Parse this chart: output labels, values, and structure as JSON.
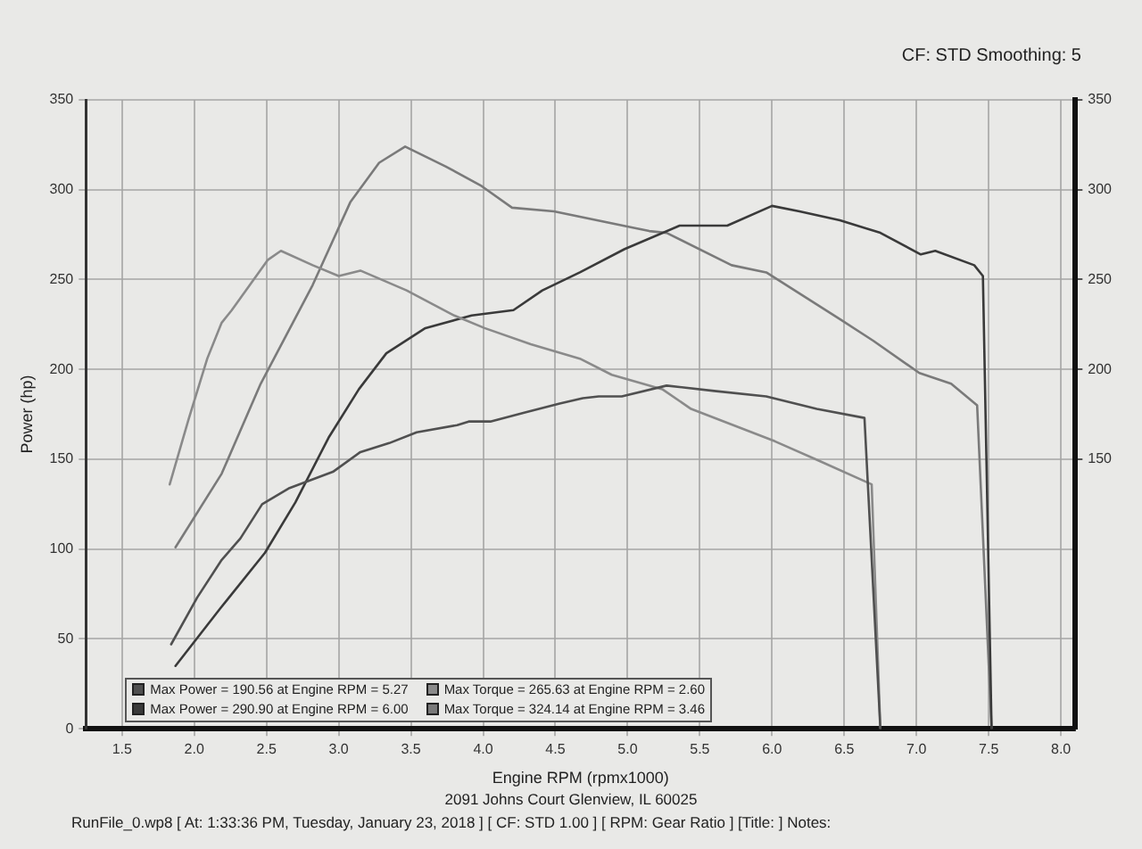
{
  "chart_data": {
    "type": "line",
    "xlabel": "Engine RPM (rpmx1000)",
    "ylabel": "Power (hp)",
    "annotations": [
      "CF: STD Smoothing: 5",
      "2091 Johns Court Glenview, IL 60025",
      "RunFile_0.wp8 [ At: 1:33:36 PM, Tuesday, January 23, 2018 ] [ CF: STD 1.00 ] [ RPM: Gear Ratio ] [Title: ] Notes:"
    ],
    "xlim": [
      1.25,
      8.1
    ],
    "xticks": [
      1.5,
      {
        "value": 2,
        "label": "2.0"
      },
      2.5,
      {
        "value": 3,
        "label": "3.0"
      },
      3.5,
      {
        "value": 4,
        "label": "4.0"
      },
      4.5,
      {
        "value": 5,
        "label": "5.0"
      },
      5.5,
      {
        "value": 6,
        "label": "6.0"
      },
      6.5,
      {
        "value": 7,
        "label": "7.0"
      },
      7.5,
      {
        "value": 8,
        "label": "8.0"
      }
    ],
    "ylim": [
      0,
      350
    ],
    "yticks": [
      0,
      50,
      100,
      150,
      200,
      250,
      300,
      350
    ],
    "y2lim": [
      0,
      350
    ],
    "y2ticks": [
      150,
      200,
      250,
      300,
      350
    ],
    "grid": true,
    "legend": "bottom left",
    "marker": "none",
    "line_style": "solid",
    "series": [
      {
        "name": "Max Power = 190.56 at Engine RPM = 5.27",
        "color": "#505050",
        "x": [
          1.84,
          2.02,
          2.19,
          2.32,
          2.47,
          2.66,
          2.96,
          3.15,
          3.35,
          3.54,
          3.82,
          3.9,
          4.05,
          4.29,
          4.53,
          4.69,
          4.8,
          4.96,
          5.27,
          5.6,
          5.96,
          6.31,
          6.64,
          6.75
        ],
        "values": [
          47,
          73,
          94,
          106,
          125,
          134,
          143,
          154,
          159,
          165,
          169,
          171,
          171,
          176,
          181,
          184,
          185,
          185,
          191,
          188,
          185,
          178,
          173,
          0
        ]
      },
      {
        "name": "Max Torque = 265.63 at Engine RPM = 2.60",
        "color": "#8a8a8a",
        "x": [
          1.83,
          1.96,
          2.09,
          2.19,
          2.26,
          2.51,
          2.6,
          2.82,
          3.0,
          3.15,
          3.47,
          3.8,
          4.01,
          4.33,
          4.67,
          4.89,
          5.24,
          5.44,
          6.02,
          6.33,
          6.69,
          6.75
        ],
        "values": [
          136,
          172,
          206,
          226,
          233,
          261,
          266,
          258,
          252,
          255,
          244,
          230,
          223,
          214,
          206,
          197,
          189,
          178,
          160,
          149,
          136,
          0
        ]
      },
      {
        "name": "Max Power = 290.90 at Engine RPM = 6.00",
        "color": "#3a3a3a",
        "x": [
          1.87,
          2.18,
          2.49,
          2.7,
          2.93,
          3.14,
          3.33,
          3.6,
          3.92,
          4.21,
          4.41,
          4.67,
          4.98,
          5.36,
          5.69,
          6.0,
          6.19,
          6.47,
          6.75,
          7.03,
          7.13,
          7.4,
          7.46,
          7.52
        ],
        "values": [
          35,
          67,
          98,
          126,
          162,
          189,
          209,
          223,
          230,
          233,
          244,
          254,
          267,
          280,
          280,
          291,
          288,
          283,
          276,
          264,
          266,
          258,
          252,
          0
        ]
      },
      {
        "name": "Max Torque = 324.14 at Engine RPM = 3.46",
        "color": "#7a7a7a",
        "x": [
          1.87,
          2.19,
          2.46,
          2.82,
          3.08,
          3.28,
          3.46,
          3.74,
          3.99,
          4.2,
          4.49,
          5.15,
          5.27,
          5.72,
          5.96,
          6.47,
          6.7,
          7.02,
          7.24,
          7.42,
          7.52
        ],
        "values": [
          101,
          142,
          192,
          247,
          293,
          315,
          324,
          313,
          302,
          290,
          288,
          277,
          276,
          258,
          254,
          228,
          216,
          198,
          192,
          180,
          0
        ]
      }
    ]
  }
}
